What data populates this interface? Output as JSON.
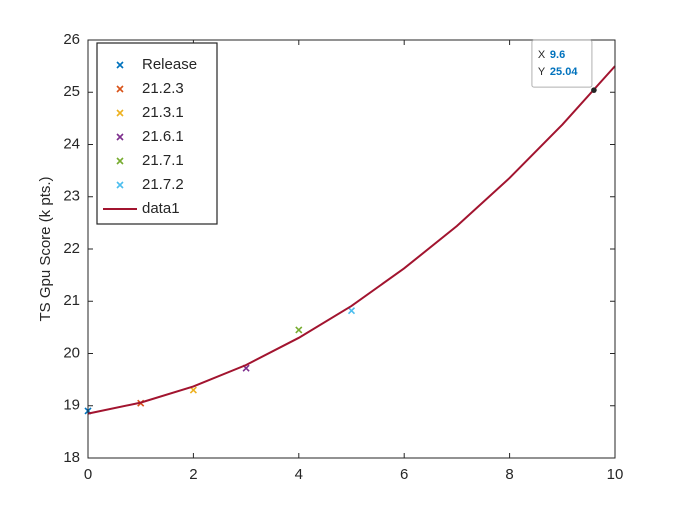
{
  "chart_data": {
    "type": "scatter",
    "ylabel": "TS Gpu Score (k pts.)",
    "xlim": [
      0,
      10
    ],
    "xticks": [
      0,
      2,
      4,
      6,
      8,
      10
    ],
    "ylim": [
      18,
      26
    ],
    "yticks": [
      18,
      19,
      20,
      21,
      22,
      23,
      24,
      25,
      26
    ],
    "legend": "upper left",
    "series": [
      {
        "name": "Release",
        "type": "scatter",
        "color": "#0072BD",
        "x": [
          0
        ],
        "values": [
          18.9
        ]
      },
      {
        "name": "21.2.3",
        "type": "scatter",
        "color": "#D95319",
        "x": [
          1
        ],
        "values": [
          19.05
        ]
      },
      {
        "name": "21.3.1",
        "type": "scatter",
        "color": "#EDB120",
        "x": [
          2
        ],
        "values": [
          19.3
        ]
      },
      {
        "name": "21.6.1",
        "type": "scatter",
        "color": "#7E2F8E",
        "x": [
          3
        ],
        "values": [
          19.72
        ]
      },
      {
        "name": "21.7.1",
        "type": "scatter",
        "color": "#77AC30",
        "x": [
          4
        ],
        "values": [
          20.45
        ]
      },
      {
        "name": "21.7.2",
        "type": "scatter",
        "color": "#4DBEEE",
        "x": [
          5
        ],
        "values": [
          20.82
        ]
      },
      {
        "name": "data1",
        "type": "line",
        "color": "#A2142F",
        "x": [
          0,
          1,
          2,
          3,
          4,
          5,
          6,
          7,
          8,
          9,
          10
        ],
        "values": [
          18.85,
          19.06,
          19.37,
          19.78,
          20.3,
          20.91,
          21.63,
          22.44,
          23.36,
          24.38,
          25.5
        ]
      }
    ],
    "datatip": {
      "x_label": "X",
      "x": 9.6,
      "y_label": "Y",
      "y": 25.04
    }
  }
}
